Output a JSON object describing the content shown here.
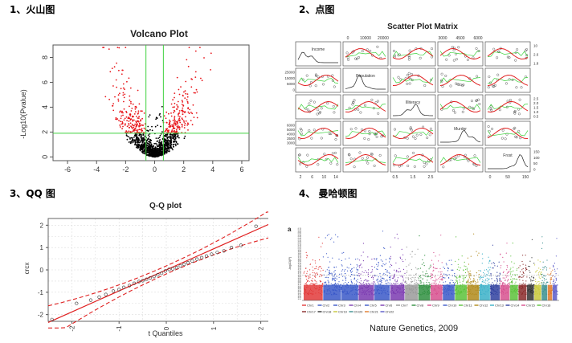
{
  "headings": {
    "volcano": "1、火山图",
    "scatter": "2、点图",
    "qq": "3、QQ 图",
    "manhattan": "4、 曼哈顿图"
  },
  "colors": {
    "sig_point": "#e8161b",
    "nonsig_point": "#000000",
    "threshold_line": "#3fd23f",
    "fit_line": "#e02020",
    "dash_line": "#e02020",
    "grid": "#dddddd"
  },
  "chart_data": [
    {
      "type": "scatter",
      "id": "volcano",
      "title": "Volcano Plot",
      "xlabel": "",
      "ylabel": "-Log10(Pvalue)",
      "xlim": [
        -7,
        6.5
      ],
      "ylim": [
        -0.3,
        9
      ],
      "x_ticks": [
        -6,
        -4,
        -2,
        0,
        2,
        4,
        6
      ],
      "y_ticks": [
        0,
        2,
        4,
        6,
        8
      ],
      "thresholds": {
        "x": [
          -0.6,
          0.6
        ],
        "y": 1.9
      },
      "grid": false
    },
    {
      "type": "scatter",
      "id": "scatter_matrix",
      "title": "Scatter Plot Matrix",
      "variables": [
        "Income",
        "Population",
        "Illiteracy",
        "Murder",
        "Frost"
      ],
      "top_ticks": [
        {
          "col": 1,
          "labels": [
            "0",
            "10000",
            "20000"
          ]
        },
        {
          "col": 3,
          "labels": [
            "3000",
            "4500",
            "6000"
          ]
        }
      ],
      "bottom_ticks": [
        {
          "col": 0,
          "labels": [
            "2",
            "6",
            "10",
            "14"
          ]
        },
        {
          "col": 2,
          "labels": [
            "0.5",
            "1.5",
            "2.5"
          ]
        },
        {
          "col": 4,
          "labels": [
            "0",
            "50",
            "150"
          ]
        }
      ],
      "left_ticks": [
        {
          "row": 1,
          "labels": [
            "25000",
            "15000",
            "5000",
            "0"
          ]
        },
        {
          "row": 3,
          "labels": [
            "6000",
            "5000",
            "4000",
            "3500",
            "3000"
          ]
        }
      ],
      "right_ticks": [
        {
          "row": 0,
          "labels": [
            "10",
            "2.6",
            "1.8"
          ]
        },
        {
          "row": 2,
          "labels": [
            "2.5",
            "2.0",
            "1.5",
            "1.0",
            "0.5"
          ]
        },
        {
          "row": 4,
          "labels": [
            "150",
            "100",
            "50",
            "0"
          ]
        }
      ],
      "grid": false
    },
    {
      "type": "scatter",
      "id": "qq",
      "title": "Q-Q plot",
      "xlabel": "t Quantiles",
      "ylabel": "crcx",
      "xlim": [
        -2.5,
        2.5
      ],
      "ylim": [
        -2.3,
        2.3
      ],
      "x_ticks": [
        -2,
        -1,
        0,
        1,
        2
      ],
      "y_ticks": [
        -2,
        -1,
        0,
        1,
        2
      ],
      "grid": true,
      "points": [
        [
          -2.42,
          -2.22
        ],
        [
          -1.9,
          -1.5
        ],
        [
          -1.6,
          -1.35
        ],
        [
          -1.42,
          -1.22
        ],
        [
          -1.28,
          -1.1
        ],
        [
          -1.12,
          -0.95
        ],
        [
          -1.0,
          -0.88
        ],
        [
          -0.9,
          -0.78
        ],
        [
          -0.78,
          -0.7
        ],
        [
          -0.68,
          -0.6
        ],
        [
          -0.58,
          -0.52
        ],
        [
          -0.5,
          -0.48
        ],
        [
          -0.42,
          -0.42
        ],
        [
          -0.34,
          -0.36
        ],
        [
          -0.26,
          -0.3
        ],
        [
          -0.18,
          -0.22
        ],
        [
          -0.1,
          -0.15
        ],
        [
          -0.02,
          -0.05
        ],
        [
          0.06,
          0.02
        ],
        [
          0.14,
          0.05
        ],
        [
          0.22,
          0.1
        ],
        [
          0.3,
          0.18
        ],
        [
          0.38,
          0.25
        ],
        [
          0.46,
          0.32
        ],
        [
          0.55,
          0.4
        ],
        [
          0.65,
          0.48
        ],
        [
          0.75,
          0.55
        ],
        [
          0.85,
          0.62
        ],
        [
          0.96,
          0.7
        ],
        [
          1.08,
          0.78
        ],
        [
          1.22,
          0.85
        ],
        [
          1.38,
          1.0
        ],
        [
          1.58,
          1.1
        ],
        [
          1.9,
          1.95
        ],
        [
          2.3,
          2.15
        ]
      ]
    },
    {
      "type": "scatter",
      "id": "manhattan",
      "panel_label": "a",
      "ylabel": "-log10(P)",
      "caption": "Nature Genetics, 2009",
      "chromosomes": [
        "Chr1",
        "Chr2",
        "Chr3",
        "Chr4",
        "Chr5",
        "Chr6",
        "Chr7",
        "Chr8",
        "Chr9",
        "Chr10",
        "Chr11",
        "Chr12",
        "Chr13",
        "Chr14",
        "Chr15",
        "Chr16",
        "Chr17",
        "Chr18",
        "Chr19",
        "Chr20",
        "Chr21",
        "Chr22"
      ],
      "chrom_colors": [
        "#e23a3a",
        "#3a58c8",
        "#3a58c8",
        "#7a3ab0",
        "#3a58c8",
        "#7a3ab0",
        "#9a9a9a",
        "#2f8f3f",
        "#d7508e",
        "#3a58c8",
        "#5cc23a",
        "#b08a1a",
        "#3ab0c8",
        "#2f3f9f",
        "#d7508e",
        "#5cc23a",
        "#8a2a2a",
        "#333333",
        "#c8c83a",
        "#3a8f8f",
        "#e07a2a",
        "#5a5ac8"
      ],
      "y_ticks": [
        "0.75",
        "0.70",
        "0.65",
        "0.60",
        "0.55",
        "0.50",
        "0.45",
        "0.40",
        "0.35",
        "0.30",
        "0.25",
        "0.20",
        "0.15",
        "0.10",
        "0.05",
        "0.00",
        "9.95",
        "9.90",
        "9.85",
        "9.80",
        "9.75",
        "9.70",
        "9.65",
        "9.60",
        "9.55",
        "9.50",
        "9.45",
        "9.40",
        "9.35",
        "9.30",
        "9.25",
        "9.20",
        "9.15",
        "9.10",
        "9.05",
        "9.00",
        "8.95",
        "8.90",
        "8.85",
        "8.80",
        "8.75",
        "8.70",
        "8.65",
        "8.60",
        "8.55",
        "8.50",
        "8.45",
        "8.40",
        "8.35",
        "8.30",
        "8.25",
        "8.20"
      ],
      "threshold": 0.65
    }
  ]
}
